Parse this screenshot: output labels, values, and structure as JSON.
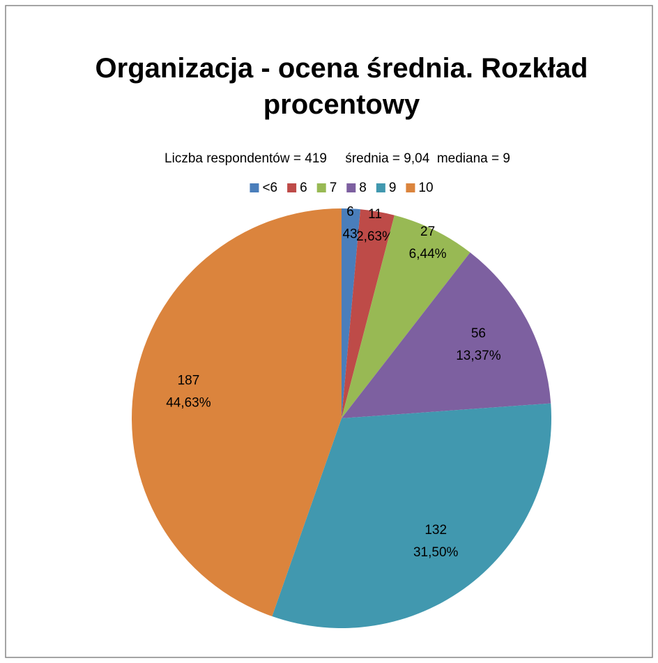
{
  "chart_data": {
    "type": "pie",
    "title": "Organizacja - ocena średnia. Rozkład procentowy",
    "subtitle": "Liczba respondentów = 419     średnia = 9,04  mediana = 9",
    "categories": [
      "<6",
      "6",
      "7",
      "8",
      "9",
      "10"
    ],
    "values": [
      6,
      11,
      27,
      56,
      132,
      187
    ],
    "percent_labels": [
      "1,43%",
      "2,63%",
      "6,44%",
      "13,37%",
      "31,50%",
      "44,63%"
    ],
    "colors": [
      "#4a7ebb",
      "#be4b48",
      "#98b954",
      "#7d60a0",
      "#4198af",
      "#db843d"
    ],
    "legend": "top"
  }
}
